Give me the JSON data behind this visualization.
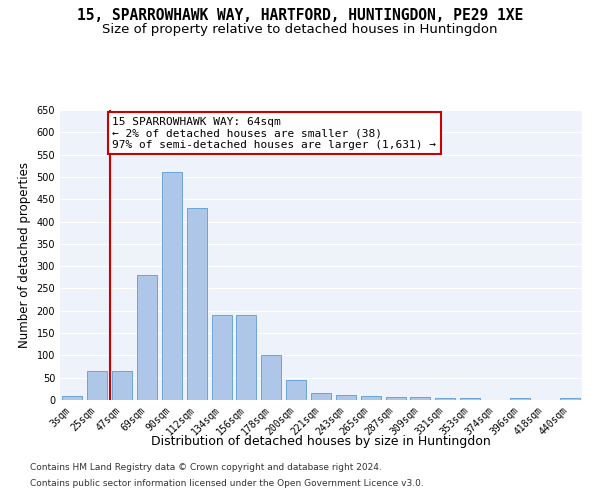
{
  "title": "15, SPARROWHAWK WAY, HARTFORD, HUNTINGDON, PE29 1XE",
  "subtitle": "Size of property relative to detached houses in Huntingdon",
  "xlabel": "Distribution of detached houses by size in Huntingdon",
  "ylabel": "Number of detached properties",
  "footer_line1": "Contains HM Land Registry data © Crown copyright and database right 2024.",
  "footer_line2": "Contains public sector information licensed under the Open Government Licence v3.0.",
  "categories": [
    "3sqm",
    "25sqm",
    "47sqm",
    "69sqm",
    "90sqm",
    "112sqm",
    "134sqm",
    "156sqm",
    "178sqm",
    "200sqm",
    "221sqm",
    "243sqm",
    "265sqm",
    "287sqm",
    "309sqm",
    "331sqm",
    "353sqm",
    "374sqm",
    "396sqm",
    "418sqm",
    "440sqm"
  ],
  "values": [
    10,
    65,
    65,
    280,
    510,
    430,
    190,
    190,
    100,
    45,
    15,
    12,
    10,
    6,
    6,
    5,
    5,
    0,
    5,
    0,
    5
  ],
  "bar_color": "#aec6e8",
  "bar_edge_color": "#5b9bd5",
  "bar_width": 0.8,
  "annotation_line1": "15 SPARROWHAWK WAY: 64sqm",
  "annotation_line2": "← 2% of detached houses are smaller (38)",
  "annotation_line3": "97% of semi-detached houses are larger (1,631) →",
  "annotation_box_color": "#ffffff",
  "annotation_box_edge": "#cc0000",
  "vline_x": 1.5,
  "vline_color": "#cc0000",
  "ylim": [
    0,
    650
  ],
  "yticks": [
    0,
    50,
    100,
    150,
    200,
    250,
    300,
    350,
    400,
    450,
    500,
    550,
    600,
    650
  ],
  "background_color": "#eef2fa",
  "grid_color": "#ffffff",
  "title_fontsize": 10.5,
  "subtitle_fontsize": 9.5,
  "xlabel_fontsize": 9,
  "ylabel_fontsize": 8.5,
  "tick_fontsize": 7,
  "annotation_fontsize": 8,
  "footer_fontsize": 6.5
}
